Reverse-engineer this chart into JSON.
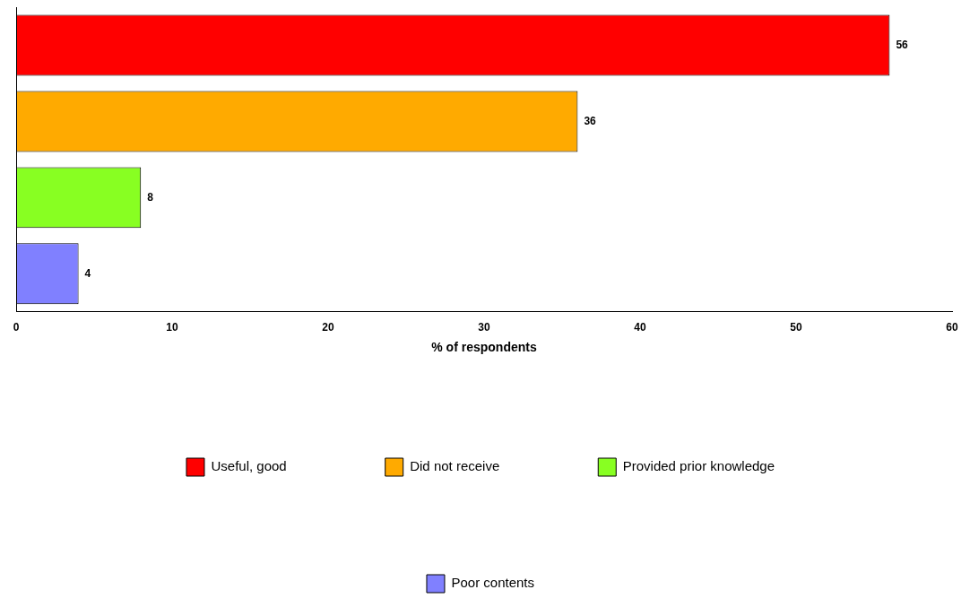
{
  "chart_data": {
    "type": "bar",
    "orientation": "horizontal",
    "xlabel": "% of respondents",
    "categories": [
      null,
      null,
      null,
      null
    ],
    "series": [
      {
        "name": "Useful, good",
        "color": "#ff0000",
        "values": [
          56,
          null,
          null,
          null
        ]
      },
      {
        "name": "Did not receive",
        "color": "#ffaa00",
        "values": [
          null,
          36,
          null,
          null
        ]
      },
      {
        "name": "Provided prior knowledge",
        "color": "#88ff22",
        "values": [
          null,
          null,
          8,
          null
        ]
      },
      {
        "name": "Poor contents",
        "color": "#8080ff",
        "values": [
          null,
          null,
          null,
          4
        ]
      }
    ],
    "xlim": [
      0,
      60
    ],
    "xticks": [
      0,
      10,
      20,
      30,
      40,
      50,
      60
    ],
    "grid": false,
    "legend": "bottom",
    "data_labels": true
  }
}
